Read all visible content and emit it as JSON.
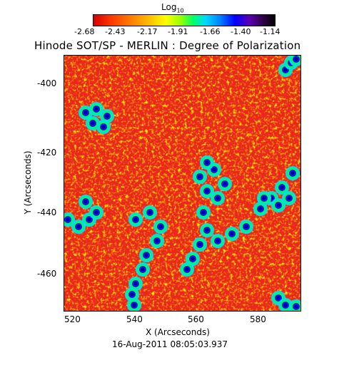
{
  "colorbar": {
    "title": "Log",
    "title_subscript": "10",
    "ticks": [
      "-2.68",
      "-2.43",
      "-2.17",
      "-1.91",
      "-1.66",
      "-1.40",
      "-1.14"
    ]
  },
  "title": "Hinode SOT/SP - MERLIN : Degree of Polarization",
  "axes": {
    "xlabel": "X (Arcseconds)",
    "ylabel": "Y (Arcseconds)",
    "xticks": [
      "520",
      "540",
      "560",
      "580"
    ],
    "yticks": [
      "-400",
      "-420",
      "-440",
      "-460"
    ]
  },
  "timestamp": "16-Aug-2011 08:05:03.937",
  "colors": {
    "background": "#e8281c",
    "speckle": "#ffe000",
    "network": "#0000ff"
  }
}
